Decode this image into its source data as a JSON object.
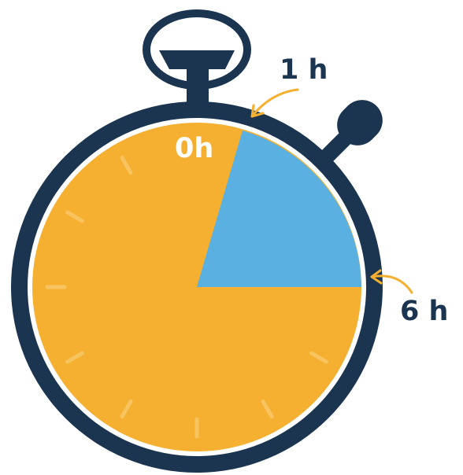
{
  "labels": {
    "zero": "0h",
    "one": "1 h",
    "six": "6 h"
  },
  "colors": {
    "navy": "#1b3551",
    "orange": "#f6b031",
    "blue": "#5ab0e0",
    "white": "#ffffff",
    "tick": "#f8c45f",
    "arrow": "#f6b031"
  },
  "icons": {
    "body": "stopwatch-icon"
  }
}
